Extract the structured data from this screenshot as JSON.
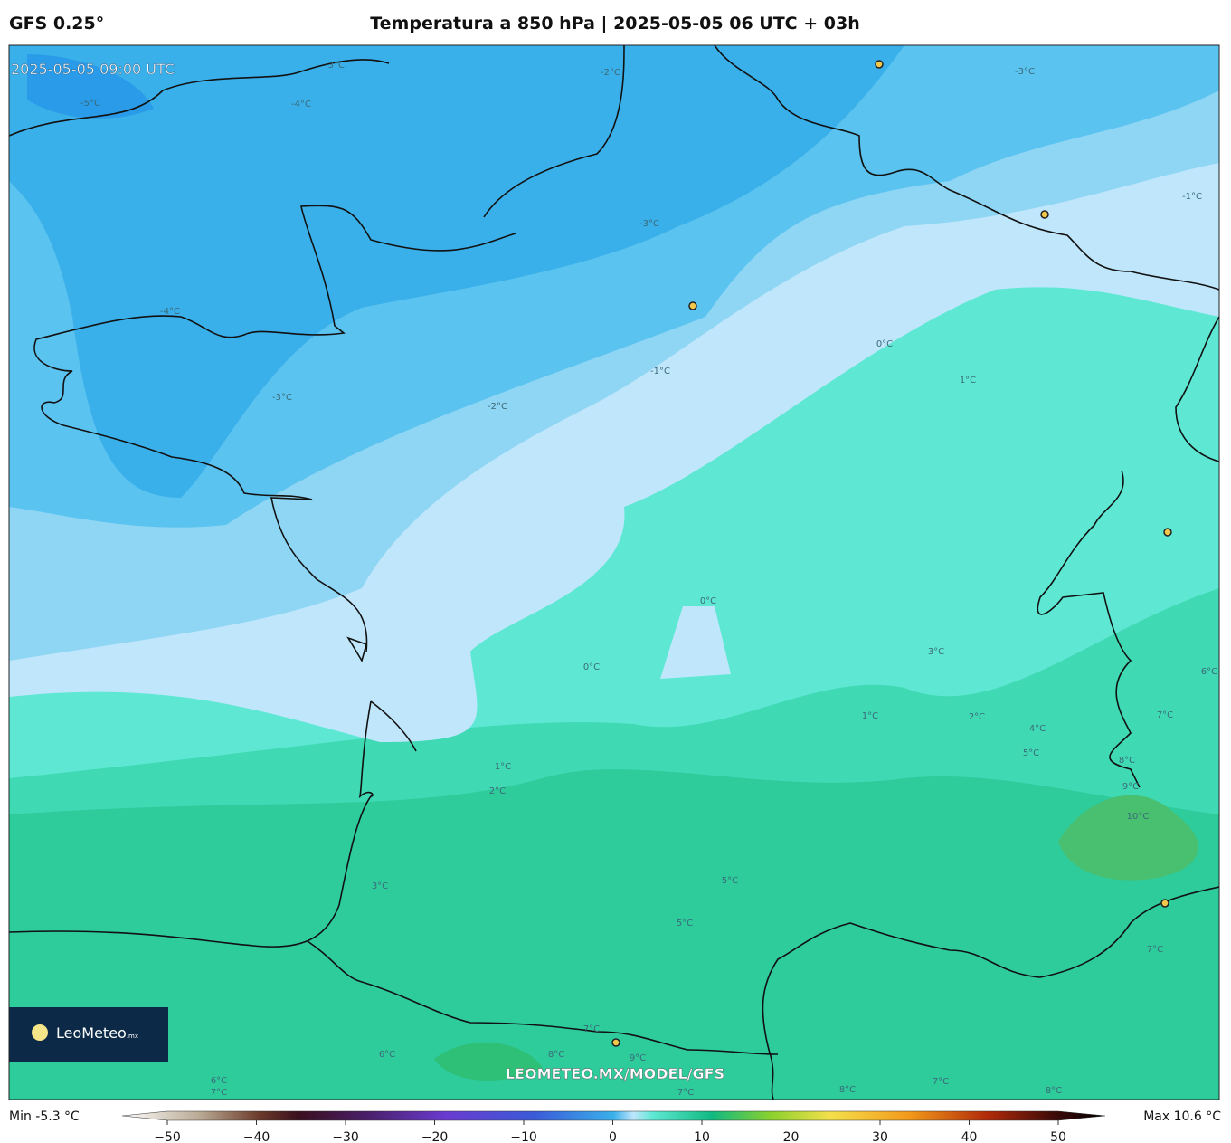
{
  "header": {
    "model": "GFS 0.25°",
    "title": "Temperatura a 850 hPa | 2025-05-05 06 UTC + 03h"
  },
  "map": {
    "timestamp": "2025-05-05 09:00 UTC",
    "watermark": "LEOMETEO.MX/MODEL/GFS",
    "logo": "LeoMeteo",
    "logo_suffix": ".mx",
    "contour_labels": [
      "-3°C",
      "-2°C",
      "-5°C",
      "-4°C",
      "-3°C",
      "-1°C",
      "-3°C",
      "-4°C",
      "-3°C",
      "-2°C",
      "-1°C",
      "0°C",
      "1°C",
      "0°C",
      "0°C",
      "3°C",
      "1°C",
      "2°C",
      "1°C",
      "2°C",
      "4°C",
      "5°C",
      "8°C",
      "9°C",
      "10°C",
      "6°C",
      "7°C",
      "3°C",
      "5°C",
      "5°C",
      "7°C",
      "7°C",
      "6°C",
      "8°C",
      "9°C",
      "6°C",
      "7°C",
      "7°C",
      "8°C",
      "8°C",
      "7°C"
    ]
  },
  "colorbar": {
    "min_label": "Min -5.3 °C",
    "max_label": "Max 10.6 °C",
    "range": [
      -50,
      50
    ],
    "ticks": [
      {
        "value": -50,
        "label": "−50"
      },
      {
        "value": -40,
        "label": "−40"
      },
      {
        "value": -30,
        "label": "−30"
      },
      {
        "value": -20,
        "label": "−20"
      },
      {
        "value": -10,
        "label": "−10"
      },
      0,
      10,
      20,
      30,
      40,
      50
    ]
  }
}
